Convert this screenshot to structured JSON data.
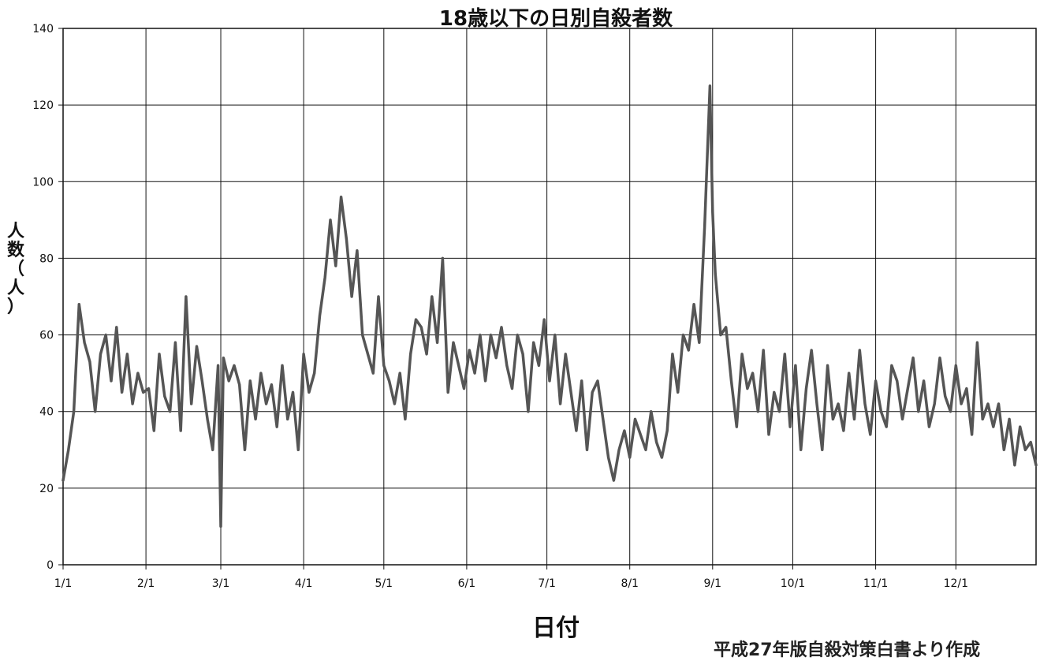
{
  "chart_data": {
    "type": "line",
    "title": "18歳以下の日別自殺者数",
    "xlabel": "日付",
    "ylabel": "人数（人）",
    "ylim": [
      0,
      140
    ],
    "yticks": [
      0,
      20,
      40,
      60,
      80,
      100,
      120,
      140
    ],
    "xlim": [
      1,
      365
    ],
    "xtick_labels": [
      "1/1",
      "2/1",
      "3/1",
      "4/1",
      "5/1",
      "6/1",
      "7/1",
      "8/1",
      "9/1",
      "10/1",
      "11/1",
      "12/1"
    ],
    "xtick_days": [
      1,
      32,
      60,
      91,
      121,
      152,
      182,
      213,
      244,
      274,
      305,
      335
    ],
    "grid": true,
    "legend": "none",
    "line_color": "#555555",
    "series": [
      {
        "x": [
          1,
          3,
          5,
          7,
          9,
          11,
          13,
          15,
          17,
          19,
          21,
          23,
          25,
          27,
          29,
          31,
          33,
          35,
          37,
          39,
          41,
          43,
          45,
          47,
          49,
          51,
          53,
          55,
          57,
          59,
          60,
          61,
          63,
          65,
          67,
          69,
          71,
          73,
          75,
          77,
          79,
          81,
          83,
          85,
          87,
          89,
          91,
          93,
          95,
          97,
          99,
          101,
          103,
          105,
          107,
          109,
          111,
          113,
          115,
          117,
          119,
          121,
          123,
          125,
          127,
          129,
          131,
          133,
          135,
          137,
          139,
          141,
          143,
          145,
          147,
          149,
          151,
          153,
          155,
          157,
          159,
          161,
          163,
          165,
          167,
          169,
          171,
          173,
          175,
          177,
          179,
          181,
          183,
          185,
          187,
          189,
          191,
          193,
          195,
          197,
          199,
          201,
          203,
          205,
          207,
          209,
          211,
          213,
          215,
          217,
          219,
          221,
          223,
          225,
          227,
          229,
          231,
          233,
          235,
          237,
          239,
          241,
          243,
          244,
          245,
          247,
          249,
          251,
          253,
          255,
          257,
          259,
          261,
          263,
          265,
          267,
          269,
          271,
          273,
          275,
          277,
          279,
          281,
          283,
          285,
          287,
          289,
          291,
          293,
          295,
          297,
          299,
          301,
          303,
          305,
          307,
          309,
          311,
          313,
          315,
          317,
          319,
          321,
          323,
          325,
          327,
          329,
          331,
          333,
          335,
          337,
          339,
          341,
          343,
          345,
          347,
          349,
          351,
          353,
          355,
          357,
          359,
          361,
          363,
          365
        ],
        "y": [
          22,
          30,
          40,
          68,
          58,
          53,
          40,
          55,
          60,
          48,
          62,
          45,
          55,
          42,
          50,
          45,
          46,
          35,
          55,
          44,
          40,
          58,
          35,
          70,
          42,
          57,
          48,
          38,
          30,
          52,
          10,
          54,
          48,
          52,
          47,
          30,
          48,
          38,
          50,
          42,
          47,
          36,
          52,
          38,
          45,
          30,
          55,
          45,
          50,
          65,
          75,
          90,
          78,
          96,
          85,
          70,
          82,
          60,
          55,
          50,
          70,
          52,
          48,
          42,
          50,
          38,
          55,
          64,
          62,
          55,
          70,
          58,
          80,
          45,
          58,
          52,
          46,
          56,
          50,
          60,
          48,
          60,
          54,
          62,
          52,
          46,
          60,
          55,
          40,
          58,
          52,
          64,
          48,
          60,
          42,
          55,
          45,
          35,
          48,
          30,
          45,
          48,
          38,
          28,
          22,
          30,
          35,
          28,
          38,
          34,
          30,
          40,
          32,
          28,
          35,
          55,
          45,
          60,
          56,
          68,
          58,
          88,
          125,
          92,
          76,
          60,
          62,
          48,
          36,
          55,
          46,
          50,
          40,
          56,
          34,
          45,
          40,
          55,
          36,
          52,
          30,
          46,
          56,
          42,
          30,
          52,
          38,
          42,
          35,
          50,
          38,
          56,
          42,
          34,
          48,
          40,
          36,
          52,
          48,
          38,
          46,
          54,
          40,
          48,
          36,
          42,
          54,
          44,
          40,
          52,
          42,
          46,
          34,
          58,
          38,
          42,
          36,
          42,
          30,
          38,
          26,
          36,
          30,
          32,
          26
        ]
      }
    ]
  },
  "footnote": "平成27年版自殺対策白書より作成"
}
